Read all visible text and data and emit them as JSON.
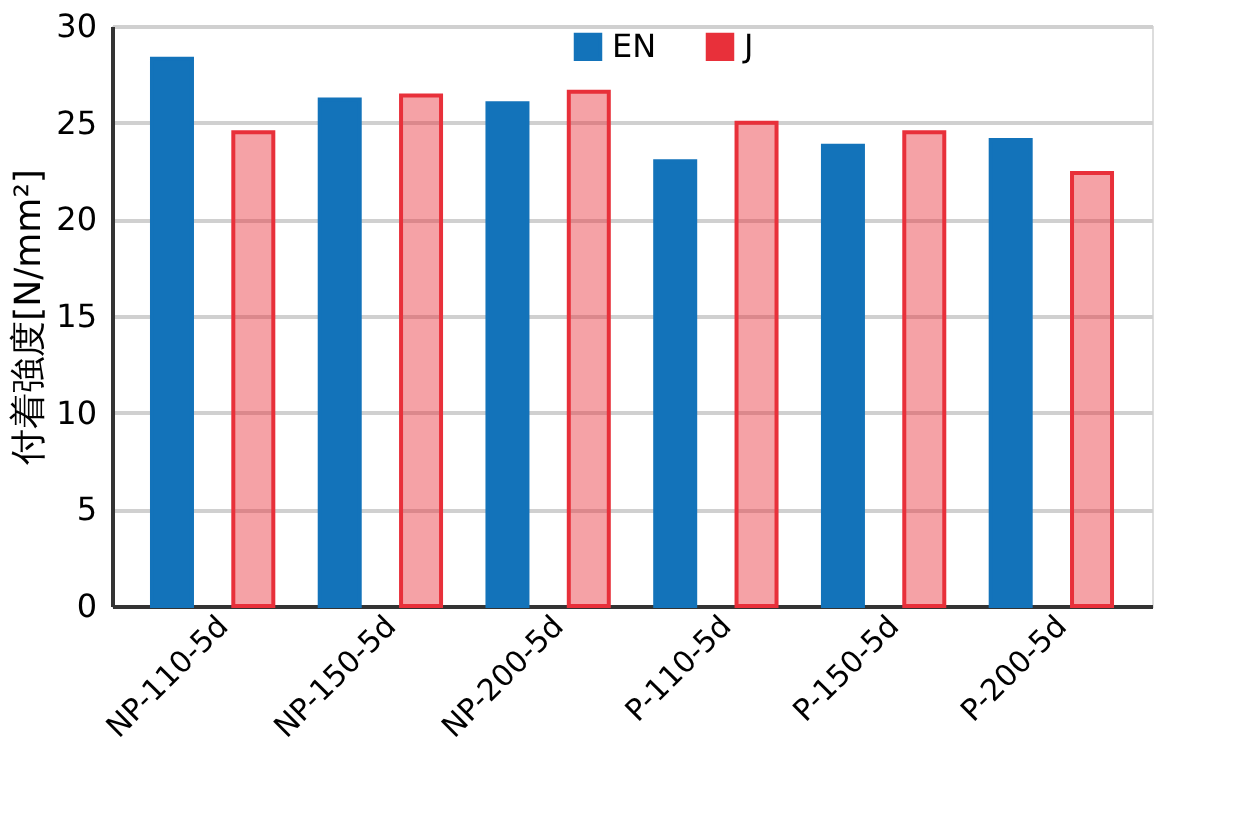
{
  "chart_data": {
    "type": "bar",
    "ylabel": "付着強度[N/mm²]",
    "categories": [
      "NP-110-5d",
      "NP-150-5d",
      "NP-200-5d",
      "P-110-5d",
      "P-150-5d",
      "P-200-5d"
    ],
    "series": [
      {
        "name": "EN",
        "color": "#1373ba",
        "values": [
          28.3,
          26.2,
          26.0,
          23.0,
          23.8,
          24.1
        ]
      },
      {
        "name": "J",
        "color": "#e8303a",
        "values": [
          24.5,
          26.4,
          26.6,
          25.0,
          24.5,
          22.4
        ]
      }
    ],
    "ylim": [
      0,
      30
    ],
    "yticks": [
      0,
      5,
      10,
      15,
      20,
      25,
      30
    ],
    "grid": "y",
    "legend": "top"
  }
}
